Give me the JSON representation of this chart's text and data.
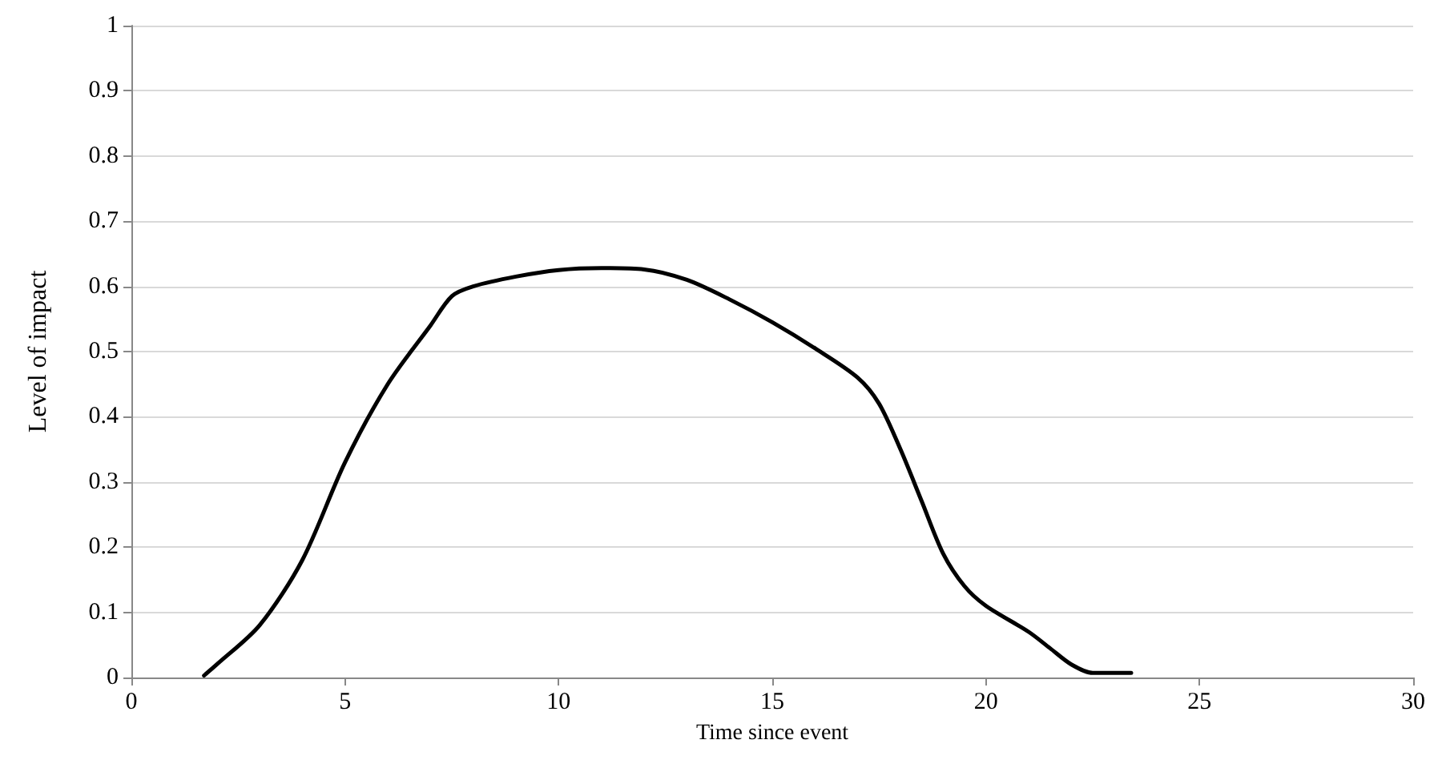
{
  "chart_data": {
    "type": "line",
    "xlabel": "Time since event",
    "ylabel": "Level of impact",
    "x": [
      1.7,
      2,
      3,
      4,
      5,
      6,
      7,
      7.5,
      8,
      9,
      10,
      11,
      12,
      13,
      14,
      15,
      16,
      17,
      17.5,
      18,
      18.5,
      19,
      19.5,
      20,
      21,
      21.5,
      22,
      22.5,
      23.4
    ],
    "series": [
      {
        "color": "#000000",
        "values": [
          0.003,
          0.02,
          0.08,
          0.18,
          0.33,
          0.45,
          0.54,
          0.585,
          0.6,
          0.615,
          0.625,
          0.628,
          0.626,
          0.61,
          0.58,
          0.545,
          0.505,
          0.46,
          0.42,
          0.35,
          0.27,
          0.19,
          0.14,
          0.11,
          0.07,
          0.045,
          0.02,
          0.007,
          0.007
        ]
      }
    ],
    "xlim": [
      0,
      30
    ],
    "xticks": [
      0,
      5,
      10,
      15,
      20,
      25,
      30
    ],
    "ylim": [
      0,
      1
    ],
    "yticks": [
      0,
      0.1,
      0.2,
      0.3,
      0.4,
      0.5,
      0.6,
      0.7,
      0.8,
      0.9,
      1
    ],
    "grid": "y",
    "marker": "none",
    "line_style": "solid"
  }
}
